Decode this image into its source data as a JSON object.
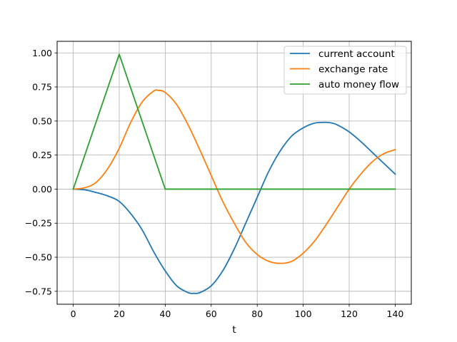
{
  "chart_data": {
    "type": "line",
    "title": "",
    "xlabel": "t",
    "ylabel": "",
    "xlim": [
      -7,
      147
    ],
    "ylim": [
      -0.845,
      1.085
    ],
    "x_ticks": [
      0,
      20,
      40,
      60,
      80,
      100,
      120,
      140
    ],
    "x_tick_labels": [
      "0",
      "20",
      "40",
      "60",
      "80",
      "100",
      "120",
      "140"
    ],
    "y_ticks": [
      -0.75,
      -0.5,
      -0.25,
      0.0,
      0.25,
      0.5,
      0.75,
      1.0
    ],
    "y_tick_labels": [
      "−0.75",
      "−0.50",
      "−0.25",
      "0.00",
      "0.25",
      "0.50",
      "0.75",
      "1.00"
    ],
    "grid": true,
    "legend_position": "upper-right",
    "series": [
      {
        "name": "current account",
        "color": "#1f77b4",
        "x": [
          0,
          5,
          10,
          15,
          20,
          25,
          30,
          35,
          40,
          45,
          50,
          52.5,
          55,
          60,
          65,
          70,
          75,
          80,
          85,
          90,
          95,
          100,
          105,
          110,
          112.5,
          115,
          120,
          125,
          130,
          135,
          140
        ],
        "y": [
          0.0,
          -0.005,
          -0.025,
          -0.05,
          -0.09,
          -0.18,
          -0.3,
          -0.46,
          -0.6,
          -0.71,
          -0.76,
          -0.765,
          -0.76,
          -0.71,
          -0.6,
          -0.44,
          -0.25,
          -0.06,
          0.13,
          0.28,
          0.39,
          0.45,
          0.485,
          0.49,
          0.485,
          0.47,
          0.42,
          0.35,
          0.27,
          0.19,
          0.11
        ]
      },
      {
        "name": "exchange rate",
        "color": "#ff7f0e",
        "x": [
          0,
          5,
          10,
          15,
          20,
          25,
          30,
          35,
          37,
          40,
          45,
          50,
          55,
          60,
          65,
          70,
          75,
          80,
          85,
          90,
          95,
          100,
          105,
          110,
          115,
          120,
          125,
          130,
          135,
          140
        ],
        "y": [
          0.0,
          0.01,
          0.05,
          0.15,
          0.3,
          0.49,
          0.64,
          0.72,
          0.725,
          0.71,
          0.62,
          0.47,
          0.29,
          0.1,
          -0.09,
          -0.25,
          -0.39,
          -0.48,
          -0.53,
          -0.545,
          -0.53,
          -0.47,
          -0.38,
          -0.26,
          -0.13,
          0.0,
          0.11,
          0.2,
          0.26,
          0.29
        ]
      },
      {
        "name": "auto money flow",
        "color": "#2ca02c",
        "x": [
          0,
          20,
          40,
          140
        ],
        "y": [
          0.0,
          0.99,
          0.0,
          0.0
        ]
      }
    ]
  }
}
